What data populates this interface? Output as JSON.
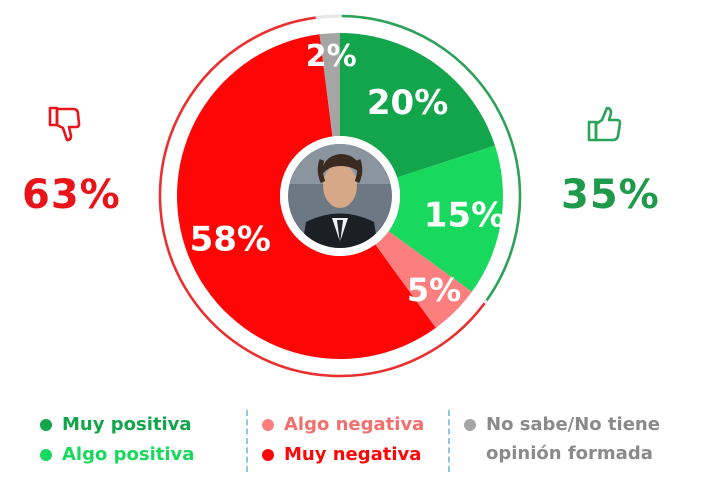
{
  "chart_data": {
    "type": "pie",
    "donut": true,
    "categories": [
      "Muy positiva",
      "Algo positiva",
      "Algo negativa",
      "Muy negativa",
      "No sabe/No tiene opinión formada"
    ],
    "values": [
      20,
      15,
      5,
      58,
      2
    ],
    "labels": [
      "20%",
      "15%",
      "5%",
      "58%",
      "2%"
    ],
    "colors": [
      "#13a54c",
      "#19d85e",
      "#fb7f7f",
      "#ff0606",
      "#a5a5a5"
    ],
    "legend_placement": "bottom",
    "annotations": {
      "negative_total": "63%",
      "positive_total": "35%"
    },
    "center_image": "portrait-photo"
  },
  "summary": {
    "negative": {
      "value": "63%",
      "color": "#e8141a",
      "icon": "thumbs-down-icon"
    },
    "positive": {
      "value": "35%",
      "color": "#1e9a4a",
      "icon": "thumbs-up-icon"
    }
  },
  "legend": {
    "col1": [
      {
        "label": "Muy positiva",
        "color": "#13a54c",
        "text_color": "#13a54c"
      },
      {
        "label": "Algo positiva",
        "color": "#19d85e",
        "text_color": "#19d85e"
      }
    ],
    "col2": [
      {
        "label": "Algo negativa",
        "color": "#fb7f7f",
        "text_color": "#f26f6f"
      },
      {
        "label": "Muy negativa",
        "color": "#ff0606",
        "text_color": "#ff0606"
      }
    ],
    "col3": {
      "line1": "No sabe/No tiene",
      "line2": "opinión formada",
      "color": "#a5a5a5"
    }
  }
}
